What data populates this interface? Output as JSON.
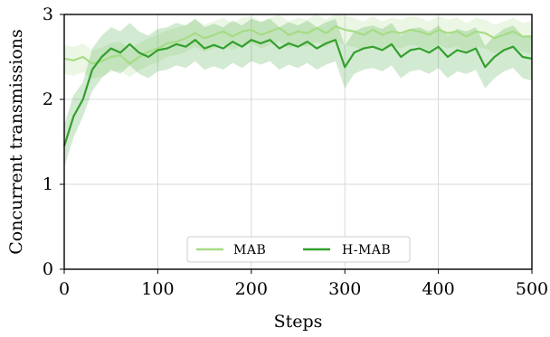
{
  "chart_data": {
    "type": "line",
    "xlabel": "Steps",
    "ylabel": "Concurrent transmissions",
    "xlim": [
      0,
      500
    ],
    "ylim": [
      0,
      3
    ],
    "xticks": [
      0,
      100,
      200,
      300,
      400,
      500
    ],
    "yticks": [
      0,
      1,
      2,
      3
    ],
    "grid": true,
    "legend_position": "bottom-center",
    "x": [
      0,
      10,
      20,
      30,
      40,
      50,
      60,
      70,
      80,
      90,
      100,
      110,
      120,
      130,
      140,
      150,
      160,
      170,
      180,
      190,
      200,
      210,
      220,
      230,
      240,
      250,
      260,
      270,
      280,
      290,
      300,
      310,
      320,
      330,
      340,
      350,
      360,
      370,
      380,
      390,
      400,
      410,
      420,
      430,
      440,
      450,
      460,
      470,
      480,
      490,
      500
    ],
    "series": [
      {
        "name": "MAB",
        "color": "#a6dc84",
        "values": [
          2.48,
          2.46,
          2.5,
          2.42,
          2.45,
          2.5,
          2.52,
          2.42,
          2.5,
          2.56,
          2.6,
          2.66,
          2.68,
          2.72,
          2.78,
          2.72,
          2.76,
          2.8,
          2.74,
          2.8,
          2.82,
          2.76,
          2.8,
          2.84,
          2.76,
          2.8,
          2.78,
          2.84,
          2.78,
          2.86,
          2.82,
          2.8,
          2.76,
          2.82,
          2.76,
          2.8,
          2.78,
          2.82,
          2.8,
          2.76,
          2.82,
          2.78,
          2.8,
          2.74,
          2.8,
          2.78,
          2.72,
          2.76,
          2.8,
          2.74,
          2.74
        ],
        "band_low": [
          2.3,
          2.28,
          2.32,
          2.24,
          2.27,
          2.32,
          2.34,
          2.26,
          2.34,
          2.4,
          2.44,
          2.5,
          2.52,
          2.56,
          2.62,
          2.56,
          2.6,
          2.64,
          2.58,
          2.64,
          2.66,
          2.6,
          2.64,
          2.68,
          2.6,
          2.64,
          2.62,
          2.68,
          2.62,
          2.7,
          2.64,
          2.62,
          2.58,
          2.64,
          2.58,
          2.62,
          2.6,
          2.64,
          2.62,
          2.58,
          2.64,
          2.6,
          2.62,
          2.56,
          2.62,
          2.6,
          2.54,
          2.58,
          2.62,
          2.56,
          2.54
        ],
        "band_high": [
          2.64,
          2.62,
          2.66,
          2.58,
          2.61,
          2.66,
          2.68,
          2.6,
          2.66,
          2.72,
          2.76,
          2.82,
          2.84,
          2.88,
          2.94,
          2.88,
          2.92,
          2.96,
          2.9,
          2.96,
          2.98,
          2.92,
          2.96,
          3.0,
          2.92,
          2.96,
          2.94,
          3.0,
          2.94,
          3.0,
          2.98,
          2.96,
          2.92,
          2.98,
          2.92,
          2.96,
          2.94,
          2.98,
          2.96,
          2.92,
          2.98,
          2.94,
          2.96,
          2.9,
          2.96,
          2.94,
          2.88,
          2.92,
          2.96,
          2.9,
          2.92
        ]
      },
      {
        "name": "H-MAB",
        "color": "#33a02c",
        "values": [
          1.45,
          1.8,
          2.0,
          2.35,
          2.5,
          2.6,
          2.55,
          2.65,
          2.55,
          2.5,
          2.58,
          2.6,
          2.65,
          2.62,
          2.7,
          2.6,
          2.64,
          2.6,
          2.68,
          2.62,
          2.7,
          2.66,
          2.7,
          2.6,
          2.66,
          2.62,
          2.68,
          2.6,
          2.66,
          2.7,
          2.38,
          2.55,
          2.6,
          2.62,
          2.58,
          2.65,
          2.5,
          2.58,
          2.6,
          2.55,
          2.62,
          2.5,
          2.58,
          2.55,
          2.6,
          2.38,
          2.5,
          2.58,
          2.62,
          2.5,
          2.48
        ],
        "band_low": [
          1.2,
          1.55,
          1.8,
          2.1,
          2.25,
          2.35,
          2.3,
          2.4,
          2.3,
          2.25,
          2.33,
          2.35,
          2.4,
          2.37,
          2.45,
          2.35,
          2.39,
          2.35,
          2.43,
          2.37,
          2.45,
          2.41,
          2.45,
          2.35,
          2.41,
          2.37,
          2.43,
          2.35,
          2.41,
          2.45,
          2.13,
          2.3,
          2.35,
          2.37,
          2.33,
          2.4,
          2.25,
          2.33,
          2.35,
          2.3,
          2.37,
          2.25,
          2.33,
          2.3,
          2.35,
          2.13,
          2.25,
          2.33,
          2.37,
          2.25,
          2.22
        ],
        "band_high": [
          1.7,
          2.05,
          2.2,
          2.6,
          2.75,
          2.85,
          2.8,
          2.9,
          2.8,
          2.75,
          2.83,
          2.85,
          2.9,
          2.87,
          2.95,
          2.85,
          2.89,
          2.85,
          2.93,
          2.87,
          2.95,
          2.91,
          2.95,
          2.85,
          2.91,
          2.87,
          2.93,
          2.85,
          2.91,
          2.95,
          2.63,
          2.8,
          2.85,
          2.87,
          2.83,
          2.9,
          2.75,
          2.83,
          2.85,
          2.8,
          2.87,
          2.75,
          2.83,
          2.8,
          2.85,
          2.63,
          2.75,
          2.83,
          2.87,
          2.75,
          2.74
        ]
      }
    ]
  }
}
